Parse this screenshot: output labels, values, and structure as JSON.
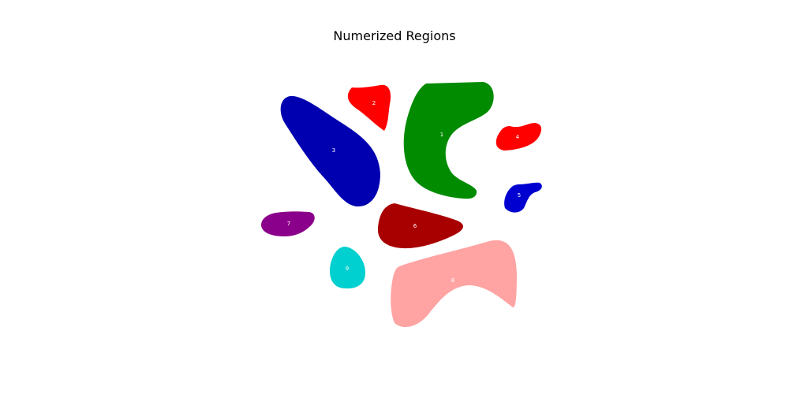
{
  "title": "Numerized Regions",
  "regions": [
    {
      "id": "1",
      "label": "1",
      "color": "#008b00"
    },
    {
      "id": "2",
      "label": "2",
      "color": "#ff0000"
    },
    {
      "id": "3",
      "label": "3",
      "color": "#0000b0"
    },
    {
      "id": "4",
      "label": "4",
      "color": "#ff0000"
    },
    {
      "id": "5",
      "label": "5",
      "color": "#0000d0"
    },
    {
      "id": "6",
      "label": "6",
      "color": "#a80000"
    },
    {
      "id": "7",
      "label": "7",
      "color": "#8b008b"
    },
    {
      "id": "8",
      "label": "8",
      "color": "#ffa3a3"
    },
    {
      "id": "9",
      "label": "9",
      "color": "#00d0d0"
    }
  ]
}
